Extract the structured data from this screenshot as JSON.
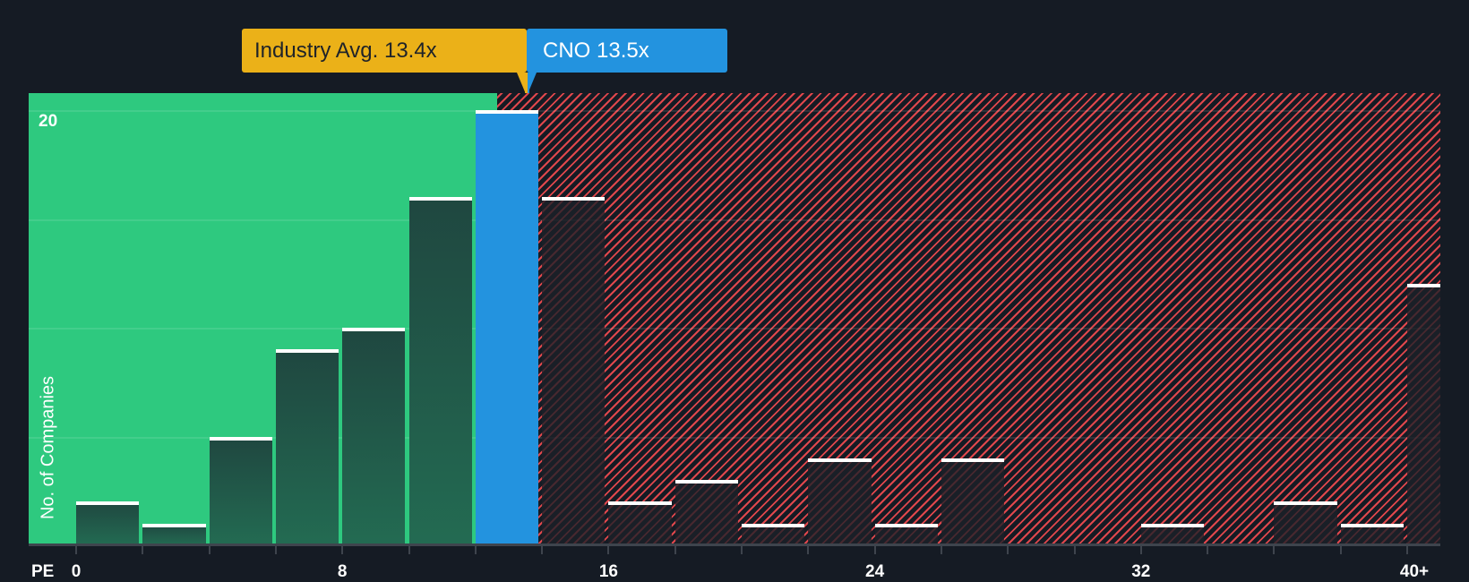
{
  "chart_data": {
    "type": "bar",
    "title": "",
    "xlabel": "PE",
    "ylabel": "No. of Companies",
    "ylim": [
      0,
      20
    ],
    "y_ticks_labeled": [
      20
    ],
    "y_gridlines": [
      5,
      10,
      15,
      20
    ],
    "x_tick_labels": [
      "0",
      "8",
      "16",
      "24",
      "32",
      "40+"
    ],
    "bin_width": 2,
    "categories": [
      "0-2",
      "2-4",
      "4-6",
      "6-8",
      "8-10",
      "10-12",
      "12-14",
      "14-16",
      "16-18",
      "18-20",
      "20-22",
      "22-24",
      "24-26",
      "26-28",
      "28-30",
      "30-32",
      "32-34",
      "34-36",
      "36-38",
      "38-40",
      "40+"
    ],
    "values": [
      2,
      1,
      5,
      9,
      10,
      16,
      20,
      16,
      2,
      3,
      1,
      4,
      1,
      4,
      0,
      0,
      1,
      0,
      2,
      1,
      12
    ],
    "highlight_bin_index": 6,
    "zones": {
      "below_average": {
        "from": 0,
        "to": 13.4,
        "color": "#2ec97f"
      },
      "above_average": {
        "from": 13.4,
        "to": 40,
        "color": "#e0474c",
        "pattern": "diagonal-hatch"
      }
    },
    "annotations": [
      {
        "label": "Industry Avg. 13.4x",
        "value": 13.4,
        "color": "#ebb118"
      },
      {
        "label": "CNO 13.5x",
        "value": 13.5,
        "color": "#2393df"
      }
    ],
    "grid": true,
    "legend": null
  },
  "labels": {
    "industry_callout": "Industry Avg. 13.4x",
    "company_callout": "CNO 13.5x",
    "y_axis": "No. of Companies",
    "y_top_tick": "20",
    "x_axis_prefix": "PE"
  },
  "colors": {
    "background": "#151b24",
    "green_zone": "#2ec97f",
    "red_hatch": "#e0474c",
    "industry": "#ebb118",
    "company": "#2393df",
    "bar_cap": "#ffffff"
  }
}
